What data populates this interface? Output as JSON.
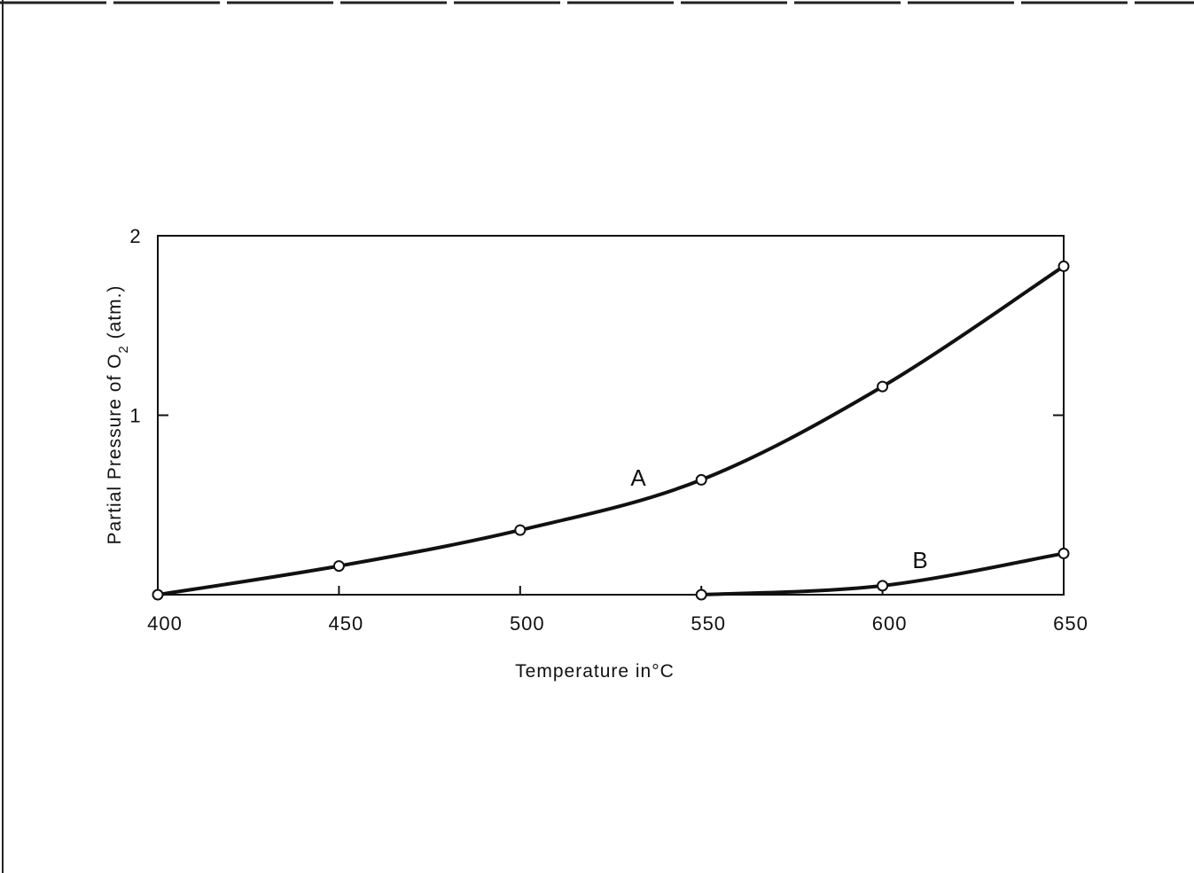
{
  "chart_data": {
    "type": "line",
    "title": "",
    "xlabel": "Temperature in°C",
    "ylabel": "Partial Pressure of O2 (atm.)",
    "ylabel_parts": {
      "prefix": "Partial Pressure of O",
      "subscript": "2",
      "suffix": " (atm.)"
    },
    "xlim": [
      400,
      650
    ],
    "ylim": [
      0,
      2
    ],
    "xticks": [
      "400",
      "450",
      "500",
      "550",
      "600",
      "650"
    ],
    "yticks": [
      "2",
      "1"
    ],
    "grid": false,
    "series": [
      {
        "name": "A",
        "x": [
          400,
          450,
          500,
          550,
          600,
          650
        ],
        "y": [
          0.0,
          0.16,
          0.36,
          0.64,
          1.16,
          1.83
        ]
      },
      {
        "name": "B",
        "x": [
          550,
          600,
          650
        ],
        "y": [
          0.0,
          0.05,
          0.23
        ]
      }
    ]
  },
  "colors": {
    "ink": "#111111",
    "background": "#ffffff"
  }
}
